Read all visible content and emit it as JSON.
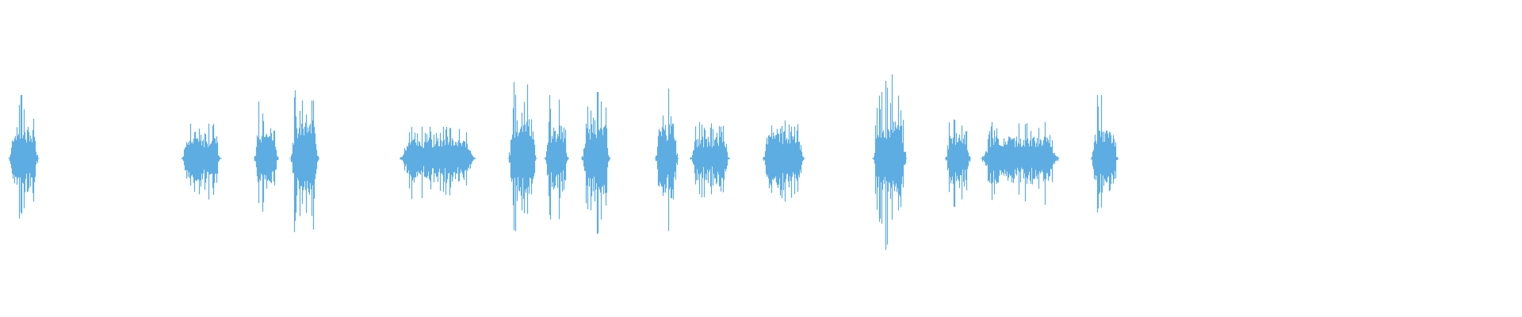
{
  "waveform": {
    "color": "#5dade2",
    "background": "#ffffff",
    "segments": [
      {
        "start": 0.0064,
        "end": 0.0242,
        "peak": 0.4,
        "body": 0.2
      },
      {
        "start": 0.1199,
        "end": 0.1441,
        "peak": 0.22,
        "body": 0.13
      },
      {
        "start": 0.1677,
        "end": 0.1818,
        "peak": 0.36,
        "body": 0.2
      },
      {
        "start": 0.1913,
        "end": 0.2085,
        "peak": 0.43,
        "body": 0.24
      },
      {
        "start": 0.2634,
        "end": 0.3112,
        "peak": 0.2,
        "body": 0.13
      },
      {
        "start": 0.3348,
        "end": 0.3514,
        "peak": 0.5,
        "body": 0.26
      },
      {
        "start": 0.3584,
        "end": 0.3724,
        "peak": 0.42,
        "body": 0.2
      },
      {
        "start": 0.3827,
        "end": 0.3999,
        "peak": 0.42,
        "body": 0.22
      },
      {
        "start": 0.4311,
        "end": 0.4445,
        "peak": 0.51,
        "body": 0.22
      },
      {
        "start": 0.4541,
        "end": 0.4783,
        "peak": 0.23,
        "body": 0.14
      },
      {
        "start": 0.5019,
        "end": 0.5274,
        "peak": 0.24,
        "body": 0.17
      },
      {
        "start": 0.574,
        "end": 0.5944,
        "peak": 0.53,
        "body": 0.24
      },
      {
        "start": 0.6218,
        "end": 0.6365,
        "peak": 0.27,
        "body": 0.17
      },
      {
        "start": 0.6454,
        "end": 0.6945,
        "peak": 0.23,
        "body": 0.14
      },
      {
        "start": 0.7175,
        "end": 0.7334,
        "peak": 0.4,
        "body": 0.18
      }
    ]
  }
}
